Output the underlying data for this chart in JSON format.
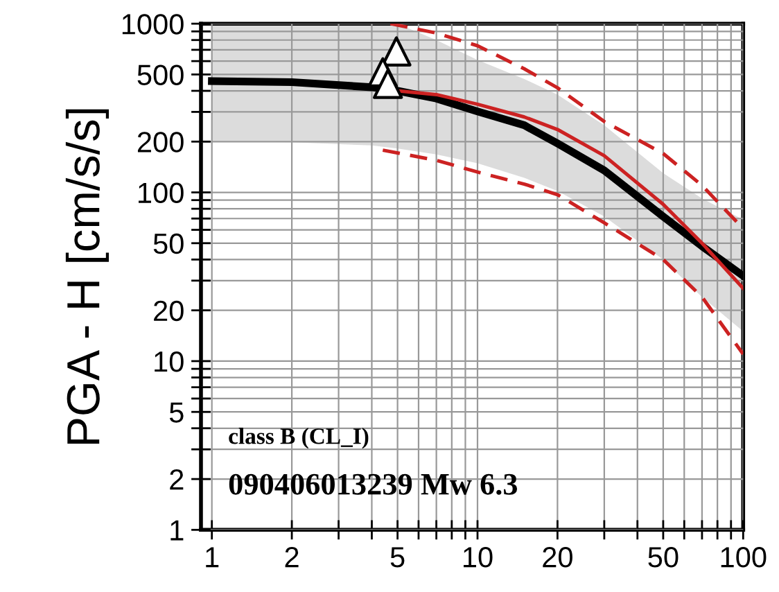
{
  "chart_data": {
    "type": "line",
    "ylabel": "PGA - H [cm/s/s]",
    "log": "xy",
    "grid": true,
    "xlim": [
      0.91,
      100
    ],
    "ylim": [
      1,
      1000
    ],
    "xticks": [
      1,
      2,
      {
        "value": 3,
        "label": null
      },
      {
        "value": 4,
        "label": null
      },
      5,
      {
        "value": 6,
        "label": null
      },
      {
        "value": 7,
        "label": null
      },
      {
        "value": 8,
        "label": null
      },
      {
        "value": 9,
        "label": null
      },
      10,
      20,
      {
        "value": 30,
        "label": null
      },
      {
        "value": 40,
        "label": null
      },
      50,
      {
        "value": 60,
        "label": null
      },
      {
        "value": 70,
        "label": null
      },
      {
        "value": 80,
        "label": null
      },
      {
        "value": 90,
        "label": null
      },
      100
    ],
    "yticks": [
      1,
      2,
      {
        "value": 3,
        "label": null
      },
      {
        "value": 4,
        "label": null
      },
      5,
      {
        "value": 6,
        "label": null
      },
      {
        "value": 7,
        "label": null
      },
      {
        "value": 8,
        "label": null
      },
      {
        "value": 9,
        "label": null
      },
      10,
      20,
      {
        "value": 30,
        "label": null
      },
      {
        "value": 40,
        "label": null
      },
      50,
      {
        "value": 60,
        "label": null
      },
      {
        "value": 70,
        "label": null
      },
      {
        "value": 80,
        "label": null
      },
      {
        "value": 90,
        "label": null
      },
      100,
      200,
      {
        "value": 300,
        "label": null
      },
      {
        "value": 400,
        "label": null
      },
      500,
      {
        "value": 600,
        "label": null
      },
      {
        "value": 700,
        "label": null
      },
      {
        "value": 800,
        "label": null
      },
      {
        "value": 900,
        "label": null
      },
      1000
    ],
    "series": [
      {
        "color": "#000000",
        "x": [
          1,
          2,
          4,
          5,
          7,
          10,
          15,
          20,
          30,
          50,
          70,
          100
        ],
        "values": [
          457,
          450,
          420,
          400,
          360,
          302,
          250,
          195,
          135,
          72,
          48,
          32
        ],
        "lower": [
          200,
          198,
          190,
          182,
          168,
          149,
          122,
          102,
          72,
          40,
          24,
          15
        ],
        "upper": [
          1000,
          1000,
          1000,
          1000,
          800,
          610,
          470,
          380,
          250,
          130,
          92,
          69
        ]
      },
      {
        "color": "#cc2222",
        "x": [
          5,
          7,
          10,
          15,
          20,
          30,
          50,
          70,
          100
        ],
        "values": [
          400,
          380,
          333,
          280,
          236,
          165,
          85,
          50,
          27
        ]
      },
      {
        "color": "#cc2222",
        "line_style": "dashed",
        "x": [
          4.7,
          7,
          10,
          15,
          20,
          30,
          50,
          70,
          100
        ],
        "values": [
          1000,
          880,
          740,
          540,
          417,
          263,
          170,
          110,
          61
        ]
      },
      {
        "color": "#cc2222",
        "line_style": "dashed",
        "x": [
          4.4,
          7,
          10,
          15,
          20,
          30,
          50,
          70,
          100
        ],
        "values": [
          178,
          155,
          132,
          112,
          97,
          66,
          40,
          24,
          11
        ]
      },
      {
        "type": "scatter",
        "color": "#ffffff",
        "marker": "triangle",
        "x": [
          4.95,
          4.4,
          4.6
        ],
        "values": [
          685,
          515,
          440
        ]
      }
    ],
    "annotations": [
      "class B (CL_I)",
      "090406013239 Mw 6.3"
    ]
  }
}
